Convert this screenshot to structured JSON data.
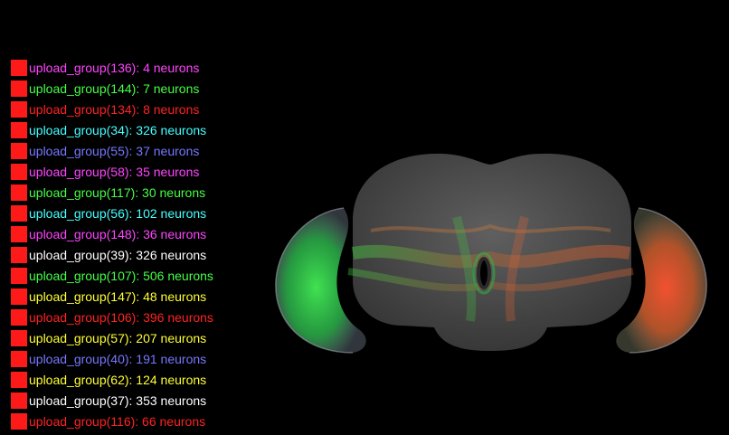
{
  "swatch_color": "#ff1a1a",
  "legend": [
    {
      "label": "upload_group(136): 4 neurons",
      "color": "#ff44ff"
    },
    {
      "label": "upload_group(144): 7 neurons",
      "color": "#44ff44"
    },
    {
      "label": "upload_group(134): 8 neurons",
      "color": "#ff2222"
    },
    {
      "label": "upload_group(34): 326 neurons",
      "color": "#44ffff"
    },
    {
      "label": "upload_group(55): 37 neurons",
      "color": "#7777ff"
    },
    {
      "label": "upload_group(58): 35 neurons",
      "color": "#ff44ff"
    },
    {
      "label": "upload_group(117): 30 neurons",
      "color": "#44ff44"
    },
    {
      "label": "upload_group(56): 102 neurons",
      "color": "#44ffff"
    },
    {
      "label": "upload_group(148): 36 neurons",
      "color": "#ff44ff"
    },
    {
      "label": "upload_group(39): 326 neurons",
      "color": "#ffffff"
    },
    {
      "label": "upload_group(107): 506 neurons",
      "color": "#44ff44"
    },
    {
      "label": "upload_group(147): 48 neurons",
      "color": "#ffff33"
    },
    {
      "label": "upload_group(106): 396 neurons",
      "color": "#ff2222"
    },
    {
      "label": "upload_group(57): 207 neurons",
      "color": "#ffff33"
    },
    {
      "label": "upload_group(40): 191 neurons",
      "color": "#7777ff"
    },
    {
      "label": "upload_group(62): 124 neurons",
      "color": "#ffff33"
    },
    {
      "label": "upload_group(37): 353 neurons",
      "color": "#ffffff"
    },
    {
      "label": "upload_group(116): 66 neurons",
      "color": "#ff2222"
    }
  ],
  "brain": {
    "mesh_color": "#5a5a5a",
    "left_lobe_color": "#33dd44",
    "right_lobe_color": "#ff5533"
  }
}
